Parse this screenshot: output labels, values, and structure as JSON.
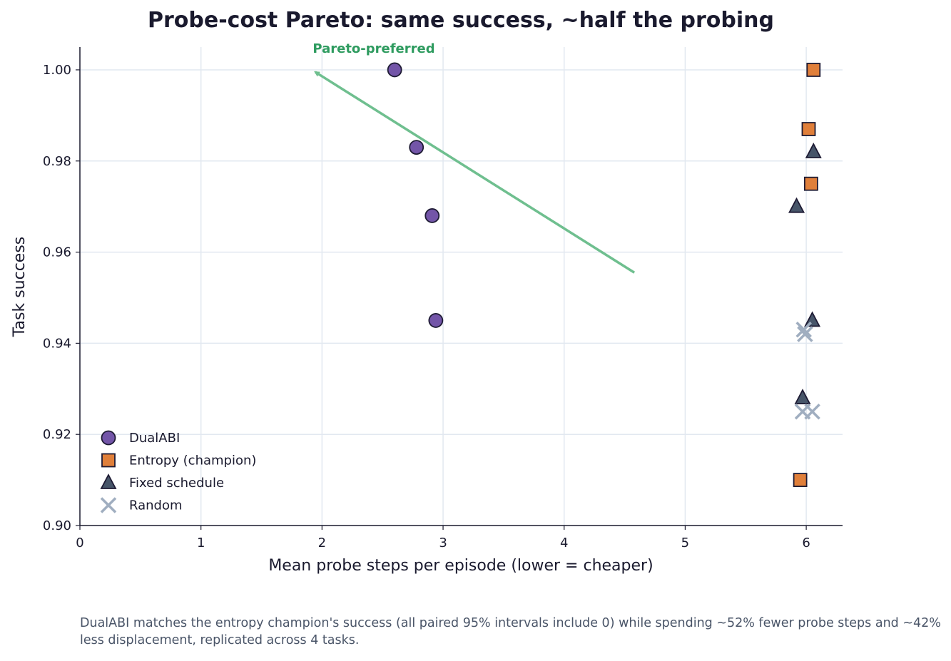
{
  "chart_data": {
    "type": "scatter",
    "title": "Probe-cost Pareto: same success, ~half the probing",
    "xlabel": "Mean probe steps per episode (lower = cheaper)",
    "ylabel": "Task success",
    "xlim": [
      0,
      6.3
    ],
    "ylim": [
      0.9,
      1.005
    ],
    "xticks": [
      "0",
      "1",
      "2",
      "3",
      "4",
      "5",
      "6"
    ],
    "yticks": [
      "0.90",
      "0.92",
      "0.94",
      "0.96",
      "0.98",
      "1.00"
    ],
    "grid": true,
    "legend_position": "lower-left",
    "series": [
      {
        "name": "DualABI",
        "marker": "circle",
        "color": "#7355a8",
        "points": [
          [
            2.6,
            1.0
          ],
          [
            2.78,
            0.983
          ],
          [
            2.91,
            0.968
          ],
          [
            2.94,
            0.945
          ]
        ]
      },
      {
        "name": "Entropy (champion)",
        "marker": "square",
        "color": "#e07f3a",
        "points": [
          [
            6.06,
            1.0
          ],
          [
            6.02,
            0.987
          ],
          [
            6.04,
            0.975
          ],
          [
            5.95,
            0.91
          ]
        ]
      },
      {
        "name": "Fixed schedule",
        "marker": "triangle",
        "color": "#475569",
        "points": [
          [
            6.06,
            0.982
          ],
          [
            5.92,
            0.97
          ],
          [
            6.05,
            0.945
          ],
          [
            5.97,
            0.928
          ]
        ]
      },
      {
        "name": "Random",
        "marker": "x",
        "color": "#a0aec0",
        "points": [
          [
            5.98,
            0.943
          ],
          [
            5.99,
            0.942
          ],
          [
            5.97,
            0.925
          ],
          [
            6.05,
            0.925
          ]
        ]
      }
    ],
    "annotation": {
      "text": "Pareto-preferred",
      "arrow_from": [
        4.58,
        0.9555
      ],
      "arrow_to": [
        1.92,
        1.0
      ],
      "color": "#6fbf8f"
    }
  },
  "caption": "DualABI matches the entropy champion's success (all paired 95% intervals include 0) while spending ~52% fewer probe steps and ~42% less displacement, replicated across 4 tasks."
}
